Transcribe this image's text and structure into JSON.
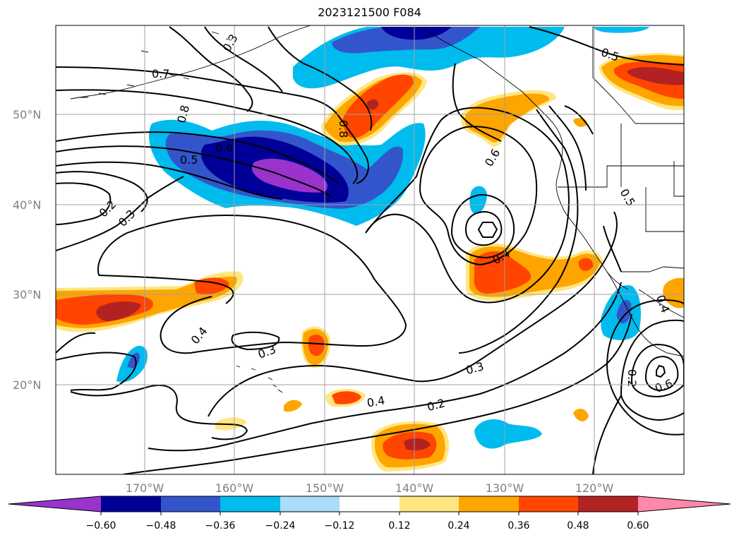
{
  "title": "2023121500 F084",
  "lat_labels": [
    "50°N",
    "40°N",
    "30°N",
    "20°N"
  ],
  "lon_labels": [
    "170°W",
    "160°W",
    "150°W",
    "140°W",
    "130°W",
    "120°W"
  ],
  "colorbar": {
    "colors": [
      "#9933cc",
      "#000099",
      "#3355cc",
      "#00bbee",
      "#aaddf7",
      "#ffffff",
      "#ffe680",
      "#ffa500",
      "#ff4500",
      "#b22222",
      "#ff88aa"
    ],
    "ticks": [
      "−0.60",
      "−0.48",
      "−0.36",
      "−0.24",
      "−0.12",
      "0.12",
      "0.24",
      "0.36",
      "0.48",
      "0.60"
    ]
  },
  "contour_labels": [
    "0.7",
    "0.8",
    "0.6",
    "0.5",
    "0.2",
    "0.3",
    "0.8",
    "0.6",
    "0.5",
    "0.5",
    "0.4",
    "0.3",
    "0.4",
    "0.3",
    "0.2",
    "0.3",
    "0.6",
    "0.2",
    "0.4",
    "0.4"
  ]
}
